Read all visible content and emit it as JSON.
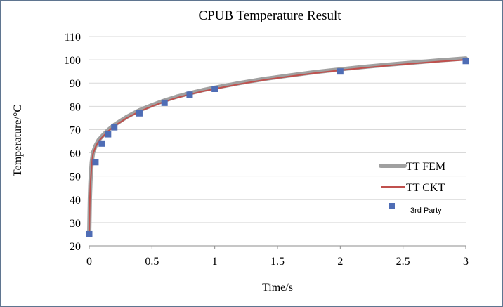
{
  "chart_data": {
    "type": "line",
    "title": "CPUB Temperature Result",
    "xlabel": "Time/s",
    "ylabel": "Temperature/°C",
    "xlim": [
      0,
      3
    ],
    "ylim": [
      20,
      110
    ],
    "xticks": [
      0,
      0.5,
      1,
      1.5,
      2,
      2.5,
      3
    ],
    "xtick_labels": [
      "0",
      "0.5",
      "1",
      "1.5",
      "2",
      "2.5",
      "3"
    ],
    "yticks": [
      20,
      30,
      40,
      50,
      60,
      70,
      80,
      90,
      100,
      110
    ],
    "ytick_labels": [
      "20",
      "30",
      "40",
      "50",
      "60",
      "70",
      "80",
      "90",
      "100",
      "110"
    ],
    "grid": "horizontal",
    "legend_position": "right",
    "series": [
      {
        "name": "TT FEM",
        "kind": "line",
        "color": "#a0a0a0",
        "x": [
          0,
          0.005,
          0.01,
          0.02,
          0.03,
          0.05,
          0.075,
          0.1,
          0.15,
          0.2,
          0.3,
          0.4,
          0.5,
          0.6,
          0.7,
          0.8,
          0.9,
          1.0,
          1.2,
          1.4,
          1.6,
          1.8,
          2.0,
          2.2,
          2.4,
          2.6,
          2.8,
          3.0
        ],
        "y": [
          25,
          40,
          48,
          56,
          60,
          63,
          65.5,
          67,
          69.8,
          72,
          75.5,
          78.3,
          80.5,
          82.5,
          84.2,
          85.6,
          86.9,
          88,
          90,
          91.8,
          93.3,
          94.7,
          95.9,
          97,
          98,
          98.9,
          99.8,
          100.6
        ]
      },
      {
        "name": "TT CKT",
        "kind": "line",
        "color": "#c0504d",
        "x": [
          0,
          0.005,
          0.01,
          0.02,
          0.03,
          0.05,
          0.075,
          0.1,
          0.15,
          0.2,
          0.3,
          0.4,
          0.5,
          0.6,
          0.7,
          0.8,
          0.9,
          1.0,
          1.2,
          1.4,
          1.6,
          1.8,
          2.0,
          2.2,
          2.4,
          2.6,
          2.8,
          3.0
        ],
        "y": [
          25,
          40,
          47,
          55,
          59.5,
          62.5,
          65,
          66.5,
          69.3,
          71.5,
          75,
          77.8,
          80,
          82,
          83.7,
          85.1,
          86.4,
          87.5,
          89.6,
          91.4,
          92.9,
          94.3,
          95.5,
          96.6,
          97.6,
          98.5,
          99.3,
          100
        ]
      },
      {
        "name": "3rd Party",
        "kind": "scatter",
        "color": "#4f6db5",
        "x": [
          0,
          0.05,
          0.1,
          0.15,
          0.2,
          0.4,
          0.6,
          0.8,
          1.0,
          2.0,
          3.0
        ],
        "y": [
          25,
          56,
          64,
          68,
          71,
          77,
          81.5,
          85,
          87.5,
          95,
          99.5
        ]
      }
    ]
  }
}
